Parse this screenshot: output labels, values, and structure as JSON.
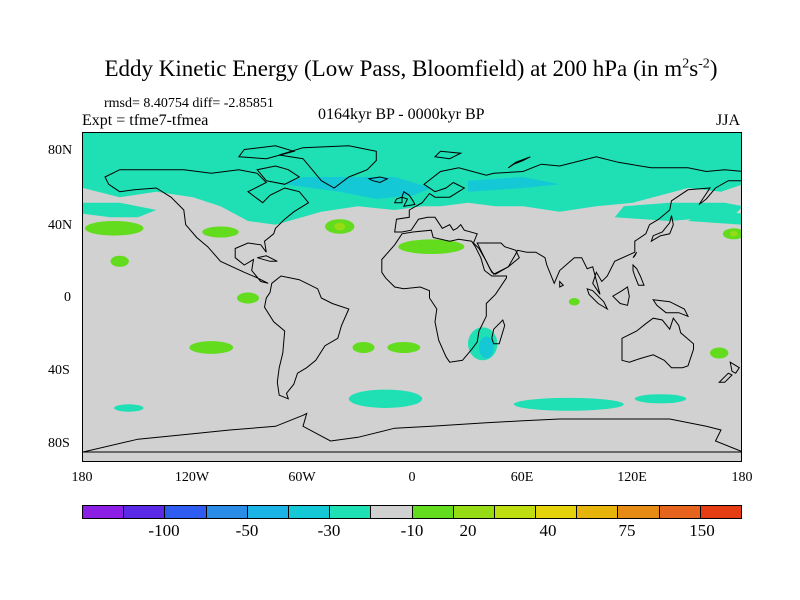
{
  "header": {
    "title_main": "Eddy Kinetic Energy (Low Pass, Bloomfield) at 200 hPa (in m",
    "title_sup1": "2",
    "title_mid": "s",
    "title_sup2": "-2",
    "title_end": ")",
    "stats": "rmsd= 8.40754 diff= -2.85851",
    "experiment": "Expt = tfme7-tfmea",
    "period": "0164kyr BP - 0000kyr BP",
    "season": "JJA"
  },
  "map": {
    "projection": "cylindrical equidistant",
    "lat_labels": [
      "80N",
      "40N",
      "0",
      "40S",
      "80S"
    ],
    "lon_labels": [
      "180",
      "120W",
      "60W",
      "0",
      "60E",
      "120E",
      "180"
    ],
    "background_color": "#d1d1d1",
    "coastline_color": "#000000"
  },
  "colorbar": {
    "colors": [
      "#8c1ee6",
      "#5a2ae6",
      "#2e5cf0",
      "#2a8ce6",
      "#1ab4e6",
      "#14c8d6",
      "#1ee0b4",
      "#d1d1d1",
      "#64dc1e",
      "#96dc14",
      "#bede10",
      "#e6d20a",
      "#e6b40a",
      "#e68c14",
      "#e6641e",
      "#e63c14"
    ],
    "labels": [
      "-100",
      "-50",
      "-30",
      "-10",
      "20",
      "40",
      "75",
      "150"
    ]
  },
  "chart_data": {
    "type": "heatmap",
    "title": "Eddy Kinetic Energy (Low Pass, Bloomfield) at 200 hPa (in m2s-2)",
    "subtitle": "0164kyr BP - 0000kyr BP",
    "season": "JJA",
    "experiment": "Expt = tfme7-tfmea",
    "rmsd": 8.40754,
    "diff": -2.85851,
    "x_range": [
      -180,
      180
    ],
    "y_range": [
      -90,
      90
    ],
    "legend_placement": "bottom",
    "contour_levels": [
      -150,
      -100,
      -75,
      -50,
      -40,
      -30,
      -20,
      -10,
      10,
      20,
      30,
      40,
      50,
      75,
      100,
      150
    ],
    "regions": [
      {
        "label": "North Atlantic / Arctic band",
        "category": "-20 to -10",
        "lon": [
          -90,
          60
        ],
        "lat": [
          40,
          90
        ]
      },
      {
        "label": "Siberia / North Pacific band",
        "category": "-20 to -10",
        "lon": [
          60,
          180
        ],
        "lat": [
          40,
          80
        ]
      },
      {
        "label": "North Pacific (east)",
        "category": "-20 to -10",
        "lon": [
          -180,
          -120
        ],
        "lat": [
          50,
          90
        ]
      },
      {
        "label": "Southern Ocean (Atlantic sector)",
        "category": "-20 to -10",
        "lon": [
          -30,
          0
        ],
        "lat": [
          -60,
          -45
        ]
      },
      {
        "label": "Southern Ocean (Indian sector)",
        "category": "-20 to -10",
        "lon": [
          60,
          110
        ],
        "lat": [
          -62,
          -52
        ]
      },
      {
        "label": "Madagascar region",
        "category": "-20 to -10",
        "lon": [
          30,
          55
        ],
        "lat": [
          -40,
          -20
        ]
      },
      {
        "label": "Subtropical North Atlantic",
        "category": "10 to 20",
        "lon": [
          -30,
          30
        ],
        "lat": [
          20,
          30
        ]
      },
      {
        "label": "Subtropical North Pacific",
        "category": "10 to 20",
        "lon": [
          -180,
          -120
        ],
        "lat": [
          20,
          40
        ]
      },
      {
        "label": "Central Pacific near equator",
        "category": "10 to 20",
        "lon": [
          -120,
          -90
        ],
        "lat": [
          -5,
          5
        ]
      },
      {
        "label": "South Pacific",
        "category": "10 to 20",
        "lon": [
          -120,
          -60
        ],
        "lat": [
          -35,
          -25
        ]
      },
      {
        "label": "South Atlantic",
        "category": "10 to 20",
        "lon": [
          -30,
          0
        ],
        "lat": [
          -35,
          -25
        ]
      }
    ]
  }
}
